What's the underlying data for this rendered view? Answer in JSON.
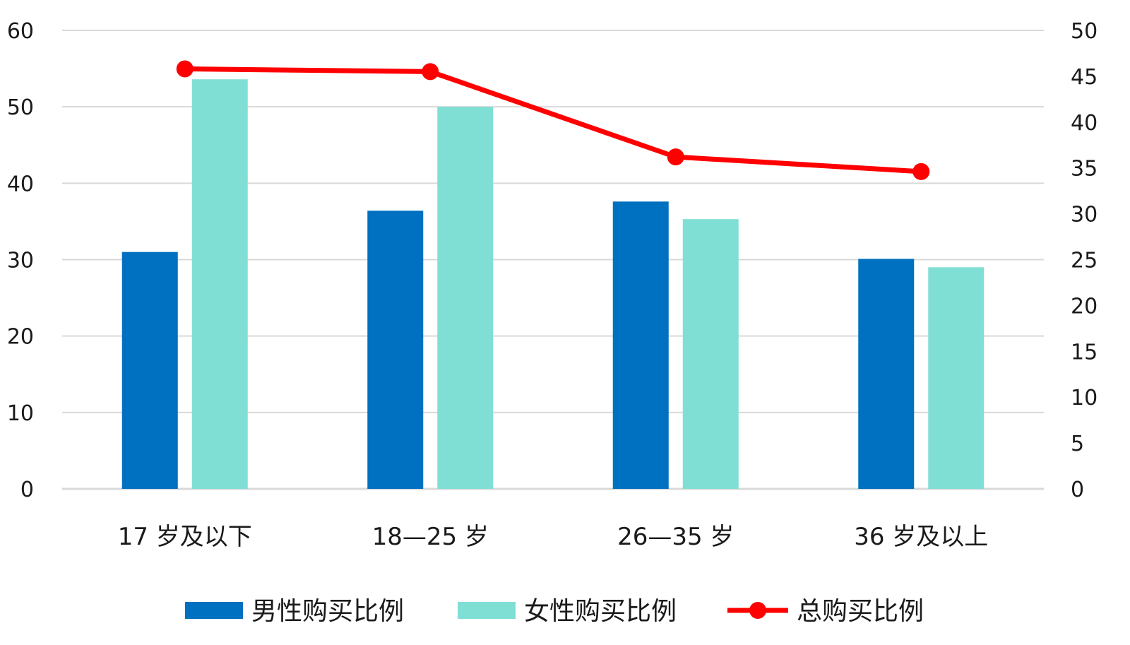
{
  "chart_data": {
    "type": "bar",
    "categories": [
      "17 岁及以下",
      "18—25 岁",
      "26—35 岁",
      "36 岁及以上"
    ],
    "series": [
      {
        "name": "男性购买比例",
        "type": "bar",
        "axis": "left",
        "values": [
          31,
          36.4,
          37.6,
          30.1
        ]
      },
      {
        "name": "女性购买比例",
        "type": "bar",
        "axis": "left",
        "values": [
          53.6,
          50,
          35.3,
          29
        ]
      },
      {
        "name": "总购买比例",
        "type": "line",
        "axis": "right",
        "values": [
          45.8,
          45.5,
          36.2,
          34.6
        ]
      }
    ],
    "y_left": {
      "lim": [
        0,
        60
      ],
      "ticks": [
        "0",
        "10",
        "20",
        "30",
        "40",
        "50",
        "60"
      ]
    },
    "y_right": {
      "lim": [
        0,
        50
      ],
      "ticks": [
        "0",
        "5",
        "10",
        "15",
        "20",
        "25",
        "30",
        "35",
        "40",
        "45",
        "50"
      ]
    },
    "grid": true,
    "legend_position": "bottom",
    "colors": {
      "male": "#0070C0",
      "female": "#80DFD5",
      "total": "#FF0000",
      "grid": "#D9D9D9",
      "text": "#1a1a1a"
    }
  }
}
